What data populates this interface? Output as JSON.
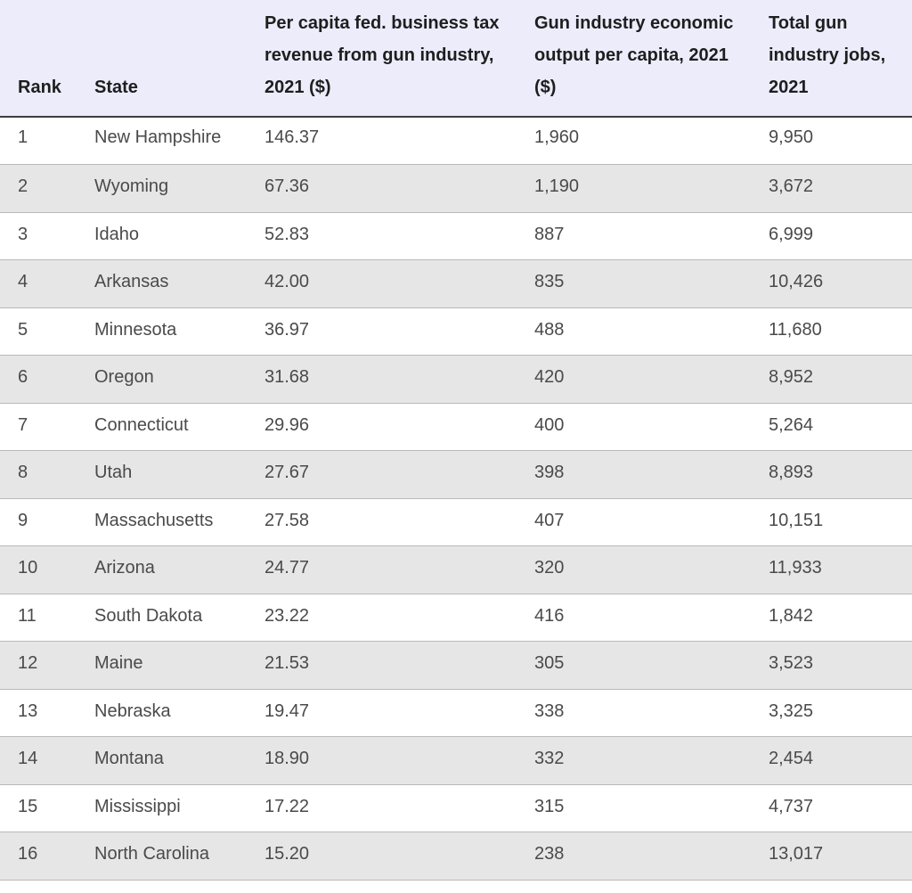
{
  "chart_data": {
    "type": "table",
    "columns": [
      "Rank",
      "State",
      "Per capita fed. business tax revenue from gun industry, 2021 ($)",
      "Gun industry economic output per capita, 2021 ($)",
      "Total gun industry jobs, 2021"
    ],
    "rows": [
      [
        "1",
        "New Hampshire",
        "146.37",
        "1,960",
        "9,950"
      ],
      [
        "2",
        "Wyoming",
        "67.36",
        "1,190",
        "3,672"
      ],
      [
        "3",
        "Idaho",
        "52.83",
        "887",
        "6,999"
      ],
      [
        "4",
        "Arkansas",
        "42.00",
        "835",
        "10,426"
      ],
      [
        "5",
        "Minnesota",
        "36.97",
        "488",
        "11,680"
      ],
      [
        "6",
        "Oregon",
        "31.68",
        "420",
        "8,952"
      ],
      [
        "7",
        "Connecticut",
        "29.96",
        "400",
        "5,264"
      ],
      [
        "8",
        "Utah",
        "27.67",
        "398",
        "8,893"
      ],
      [
        "9",
        "Massachusetts",
        "27.58",
        "407",
        "10,151"
      ],
      [
        "10",
        "Arizona",
        "24.77",
        "320",
        "11,933"
      ],
      [
        "11",
        "South Dakota",
        "23.22",
        "416",
        "1,842"
      ],
      [
        "12",
        "Maine",
        "21.53",
        "305",
        "3,523"
      ],
      [
        "13",
        "Nebraska",
        "19.47",
        "338",
        "3,325"
      ],
      [
        "14",
        "Montana",
        "18.90",
        "332",
        "2,454"
      ],
      [
        "15",
        "Mississippi",
        "17.22",
        "315",
        "4,737"
      ],
      [
        "16",
        "North Carolina",
        "15.20",
        "238",
        "13,017"
      ]
    ]
  },
  "colors": {
    "header_bg": "#ececfb",
    "stripe_bg": "#e6e6e6",
    "text": "#4a4a4a",
    "header_text": "#1e1e1e"
  }
}
